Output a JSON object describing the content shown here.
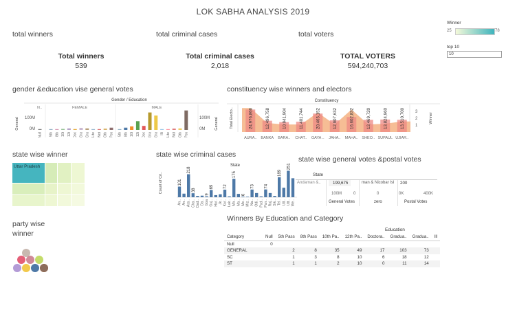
{
  "dashboard": {
    "title": "LOK SABHA ANALYSIS 2019"
  },
  "filters": {
    "winner_legend": {
      "title": "Winner",
      "min": "25",
      "max": "78",
      "color_low": "#f4f9d9",
      "color_high": "#3fb4bd"
    },
    "top10": {
      "title": "top 10",
      "value": "10"
    }
  },
  "kpis": {
    "winners": {
      "section": "total winners",
      "label": "Total winners",
      "value": "539"
    },
    "criminal": {
      "section": "total criminal cases",
      "label": "Total criminal cases",
      "value": "2,018"
    },
    "voters": {
      "section": "total voters",
      "label": "TOTAL  VOTERS",
      "value": "594,240,703"
    }
  },
  "gender_chart": {
    "section": "gender &education vise general votes",
    "header": "Gender / Education",
    "ylabel": "General",
    "groups": [
      "N..",
      "FEMALE",
      "MALE"
    ],
    "yticks": [
      "100M",
      "0M"
    ],
    "cat_labels": [
      "Null",
      "5th",
      "8th",
      "10t",
      "12t",
      "Doc",
      "Gra",
      "Gra",
      "Lite",
      "Not",
      "Oth",
      "Pos",
      "5th",
      "8th",
      "10t",
      "12t",
      "Doc",
      "Gra",
      "Gra",
      "Illi",
      "Lite",
      "Not",
      "Oth",
      "Pos"
    ],
    "right_axis": {
      "ylabel": "General",
      "yticks": [
        "100M",
        "0M"
      ]
    }
  },
  "chart_data": [
    {
      "type": "bar",
      "title": "Gender / Education",
      "ylabel": "General",
      "categories": [
        "Null",
        "5th",
        "8th",
        "10t",
        "12t",
        "Doc",
        "Gra",
        "Gra",
        "Lite",
        "Not",
        "Oth",
        "Pos",
        "5th",
        "8th",
        "10t",
        "12t",
        "Doc",
        "Gra",
        "Gra",
        "Illi",
        "Lite",
        "Not",
        "Oth",
        "Pos"
      ],
      "groups": [
        "N..",
        "FEMALE",
        "FEMALE",
        "FEMALE",
        "FEMALE",
        "FEMALE",
        "FEMALE",
        "FEMALE",
        "FEMALE",
        "FEMALE",
        "FEMALE",
        "FEMALE",
        "MALE",
        "MALE",
        "MALE",
        "MALE",
        "MALE",
        "MALE",
        "MALE",
        "MALE",
        "MALE",
        "MALE",
        "MALE",
        "MALE"
      ],
      "values": [
        3,
        2,
        4,
        8,
        12,
        7,
        16,
        12,
        3,
        6,
        10,
        18,
        3,
        18,
        28,
        70,
        32,
        140,
        115,
        3,
        6,
        10,
        12,
        156
      ],
      "colors": [
        "#888888",
        "#9ab5c8",
        "#d9a0b8",
        "#9bc49b",
        "#b7a3c9",
        "#e8b04a",
        "#c9b6d0",
        "#b8a07a",
        "#9fbcd2",
        "#e07b7b",
        "#d8b36a",
        "#8e6e6e",
        "#9ab5c8",
        "#4e79a7",
        "#f28e2b",
        "#59a14f",
        "#e15759",
        "#b6992d",
        "#edc948",
        "#a0cbe8",
        "#ff9da7",
        "#e07b7b",
        "#f1ce63",
        "#7f6b63"
      ],
      "ylim": [
        0,
        160
      ],
      "unit": "M"
    },
    {
      "type": "bar",
      "title": "Constituency",
      "ylabel": "Total Electo..",
      "categories": [
        "AURA..",
        "BANKA",
        "BARA..",
        "CHAT..",
        "GAYA ..",
        "JAHA..",
        "MAHA..",
        "SHEO..",
        "SUPAUL",
        "UJIAR.."
      ],
      "values": [
        24976866,
        12496758,
        10941904,
        11401744,
        20465152,
        12907632,
        16602832,
        13469720,
        13824960,
        13510700
      ],
      "value_labels": [
        "24,976,866",
        "12,496,758",
        "10,941,904",
        "11,401,744",
        "20,465,152",
        "12,907,632",
        "16,602,832",
        "13,469,720",
        "13,824,960",
        "13,510,700"
      ],
      "right_axis": {
        "label": "Winner",
        "ticks": [
          "3",
          "2",
          "1"
        ],
        "area_values": [
          3.2,
          1.2,
          1.0,
          1.0,
          2.6,
          1.0,
          3.0,
          1.0,
          1.1,
          1.4
        ],
        "ylim": [
          0,
          3.5
        ]
      }
    },
    {
      "type": "bar",
      "title": "State",
      "ylabel": "Count of Cri..",
      "categories": [
        "An..",
        "An..",
        "Ass..",
        "Cha..",
        "Dad..",
        "Da..",
        "Goa",
        "Guj..",
        "Har..",
        "Jk..",
        "Kar..",
        "Lak..",
        "Ma..",
        "Ma..",
        "Me..",
        "Miz..",
        "Na..",
        "Odi..",
        "Pud..",
        "Pun..",
        "Raj..",
        "Sik..",
        "Tel..",
        "Utt..",
        "Utt..",
        "We.."
      ],
      "values": [
        101,
        34,
        218,
        38,
        12,
        15,
        9,
        69,
        20,
        28,
        72,
        8,
        175,
        32,
        6,
        5,
        73,
        40,
        8,
        74,
        40,
        12,
        189,
        90,
        251,
        180
      ],
      "value_labels": [
        "101",
        "",
        "218",
        "38",
        "",
        "",
        "9",
        "69",
        "",
        "",
        "72",
        "",
        "175",
        "",
        "6",
        "",
        "73",
        "",
        "",
        "74",
        "",
        "",
        "189",
        "",
        "251",
        ""
      ],
      "ylim": [
        0,
        280
      ]
    }
  ],
  "constituency_chart": {
    "section": "constituency wise winners and electors",
    "header": "Constituency",
    "ylabel": "Total Electo..",
    "right_label": "Winner",
    "right_ticks": [
      "3",
      "2",
      "1"
    ],
    "categories": [
      "AURA..",
      "BANKA",
      "BARA..",
      "CHAT..",
      "GAYA ..",
      "JAHA..",
      "MAHA..",
      "SHEO..",
      "SUPAUL",
      "UJIAR.."
    ]
  },
  "state_winner": {
    "section": "state wise winner",
    "top_label": "Uttar Pradesh",
    "tiles": [
      {
        "name": "Uttar Pradesh",
        "color": "#45b5bf"
      },
      {
        "name": "",
        "color": "#d6ecb8"
      },
      {
        "name": "",
        "color": "#e1f1c2"
      },
      {
        "name": "",
        "color": "#eef7d3"
      },
      {
        "name": "",
        "color": "#d9eebb"
      },
      {
        "name": "",
        "color": "#e7f3c8"
      },
      {
        "name": "",
        "color": "#eef7d3"
      },
      {
        "name": "",
        "color": "#f2f9db"
      },
      {
        "name": "",
        "color": "#e8f5cc"
      },
      {
        "name": "",
        "color": "#eef7d3"
      },
      {
        "name": "",
        "color": "#f2f9db"
      },
      {
        "name": "",
        "color": "#f5fae2"
      }
    ]
  },
  "criminal_chart": {
    "section": "state wise criminal cases",
    "header": "State",
    "ylabel": "Count of Cri.."
  },
  "postal_table": {
    "section": "state wise general votes &postal votes",
    "header_col": "State",
    "state": "Andaman &..",
    "general_value": "199,675",
    "mid_text": "man & Nicobar Isl",
    "postal_value": "200",
    "gen_ticks": [
      "100M",
      "0"
    ],
    "postal_ticks": [
      "0K",
      "400K"
    ],
    "col_gen": "General Votes",
    "col_zero": "zero",
    "col_postal": "Postal Votes"
  },
  "party_bubbles": {
    "section_line1": "party wise",
    "section_line2": "winner",
    "colors": [
      "#c8b8b0",
      "#e45f78",
      "#d08a98",
      "#c4dc6a",
      "#b39bd6",
      "#f2c94c",
      "#4e79a7",
      "#e66f2b",
      "#9a7bb8",
      "#8c6d5c"
    ]
  },
  "education_table": {
    "section": "Winners By Education and Category",
    "group_header": "Education",
    "row_header": "Category",
    "columns": [
      "Null",
      "5th Pass",
      "8th Pass",
      "10th Pa..",
      "12th Pa..",
      "Doctora..",
      "Gradua..",
      "Gradua..",
      "Ill"
    ],
    "rows": [
      {
        "category": "Null",
        "cells": [
          "0",
          "",
          "",
          "",
          "",
          "",
          "",
          "",
          ""
        ]
      },
      {
        "category": "GENERAL",
        "cells": [
          "",
          "2",
          "8",
          "35",
          "49",
          "17",
          "103",
          "73",
          ""
        ]
      },
      {
        "category": "SC",
        "cells": [
          "",
          "1",
          "3",
          "8",
          "10",
          "6",
          "18",
          "12",
          ""
        ]
      },
      {
        "category": "ST",
        "cells": [
          "",
          "1",
          "1",
          "2",
          "10",
          "0",
          "11",
          "14",
          ""
        ]
      }
    ]
  }
}
